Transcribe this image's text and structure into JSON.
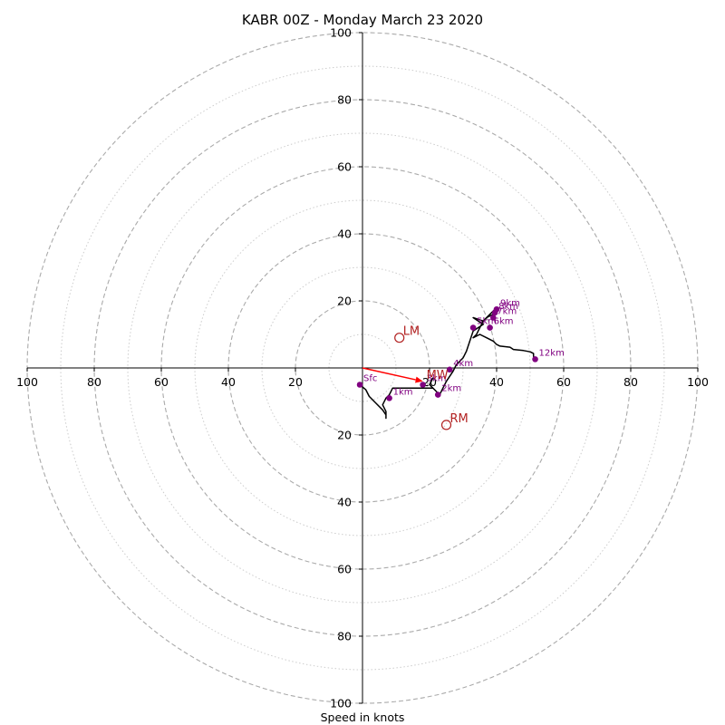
{
  "chart_data": {
    "type": "hodograph",
    "title": "KABR 00Z - Monday March 23 2020",
    "xlabel": "Speed in knots",
    "range": 100,
    "ring_step_major": 20,
    "ring_step_minor": 10,
    "tick_labels": {
      "right": [
        "20",
        "40",
        "60",
        "80",
        "100"
      ],
      "left": [
        "20",
        "40",
        "60",
        "80",
        "100"
      ],
      "up": [
        "20",
        "40",
        "60",
        "80",
        "100"
      ],
      "down": [
        "20",
        "40",
        "60",
        "80",
        "100"
      ]
    },
    "colors": {
      "trace": "#000000",
      "height_marker": "#800080",
      "storm_motion": "#b22222",
      "mean_wind_vector": "#ff0000",
      "major_ring": "#aaaaaa",
      "minor_ring": "#cccccc"
    },
    "trace": [
      [
        -0.8,
        -5
      ],
      [
        1,
        -6.5
      ],
      [
        2,
        -8.5
      ],
      [
        4,
        -10.5
      ],
      [
        6,
        -12.5
      ],
      [
        7,
        -14
      ],
      [
        7,
        -15
      ],
      [
        7,
        -13
      ],
      [
        6,
        -11
      ],
      [
        7,
        -9
      ],
      [
        8,
        -8
      ],
      [
        9,
        -6
      ],
      [
        10,
        -6
      ],
      [
        17,
        -6
      ],
      [
        21,
        -6
      ],
      [
        20,
        -5
      ],
      [
        21,
        -3
      ],
      [
        20,
        -5
      ],
      [
        21,
        -6
      ],
      [
        22,
        -7
      ],
      [
        23,
        -8
      ],
      [
        24,
        -6
      ],
      [
        25,
        -4
      ],
      [
        27,
        -1
      ],
      [
        28,
        1
      ],
      [
        30,
        3
      ],
      [
        31,
        5
      ],
      [
        32,
        8
      ],
      [
        33,
        11
      ],
      [
        36,
        13
      ],
      [
        33,
        15
      ],
      [
        36,
        14
      ],
      [
        38,
        16
      ],
      [
        39,
        17
      ],
      [
        40,
        18
      ],
      [
        39,
        16
      ],
      [
        37,
        15
      ],
      [
        36,
        14
      ],
      [
        35,
        12
      ],
      [
        34,
        10
      ],
      [
        33,
        9
      ],
      [
        35,
        10
      ],
      [
        37,
        9
      ],
      [
        39,
        8
      ],
      [
        40,
        7
      ],
      [
        41,
        6.5
      ],
      [
        44,
        6.2
      ],
      [
        45,
        5.5
      ],
      [
        48,
        5.2
      ],
      [
        50,
        4.8
      ],
      [
        51,
        4.3
      ],
      [
        51,
        3.5
      ],
      [
        51.5,
        2.6
      ]
    ],
    "height_markers": [
      {
        "label": "Sfc",
        "u": -0.8,
        "v": -5
      },
      {
        "label": "1km",
        "u": 8,
        "v": -9
      },
      {
        "label": "2km",
        "u": 22.5,
        "v": -8
      },
      {
        "label": "3km",
        "u": 18,
        "v": -5
      },
      {
        "label": "4km",
        "u": 26,
        "v": -0.5
      },
      {
        "label": "5km",
        "u": 33,
        "v": 12
      },
      {
        "label": "6km",
        "u": 38,
        "v": 12
      },
      {
        "label": "7km",
        "u": 39,
        "v": 15
      },
      {
        "label": "8km",
        "u": 39.5,
        "v": 16.5
      },
      {
        "label": "9km",
        "u": 40,
        "v": 17.5
      },
      {
        "label": "12km",
        "u": 51.5,
        "v": 2.6
      }
    ],
    "storm_motion": [
      {
        "label": "LM",
        "u": 11,
        "v": 9
      },
      {
        "label": "RM",
        "u": 25,
        "v": -17
      },
      {
        "label": "MW",
        "u": 18,
        "v": -4
      }
    ],
    "mean_wind_vector": {
      "u": 18,
      "v": -4
    }
  }
}
